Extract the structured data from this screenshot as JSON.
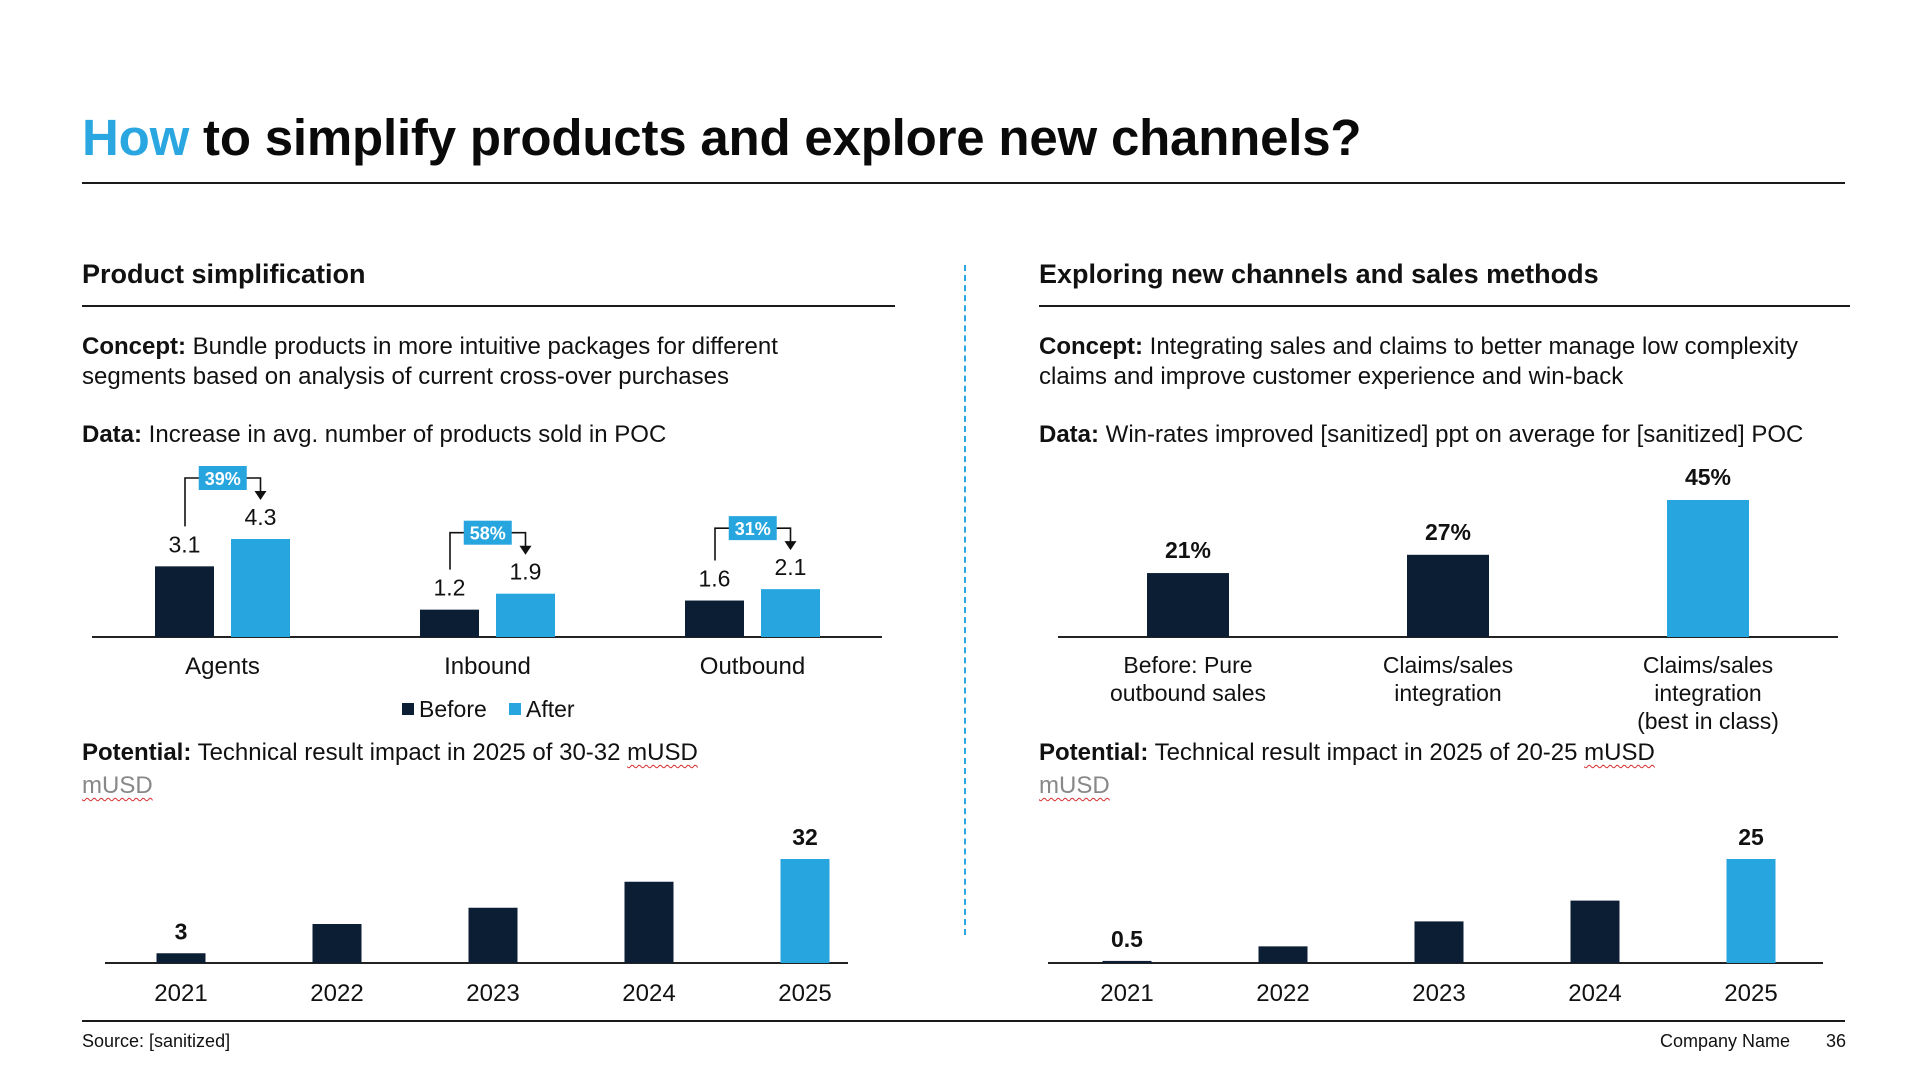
{
  "title": {
    "accent": "How",
    "rest": " to simplify products and explore new channels?"
  },
  "left": {
    "heading": "Product simplification",
    "concept_label": "Concept:",
    "concept_text": " Bundle products in more intuitive packages for different segments based on analysis of current cross-over purchases",
    "data_label": "Data:",
    "data_text": " Increase in avg. number of products sold in POC",
    "potential_label": "Potential:",
    "potential_text": " Technical result impact in 2025 of 30-32 ",
    "potential_unit_inline": "mUSD",
    "unit": "mUSD"
  },
  "right": {
    "heading": "Exploring new channels and sales methods",
    "concept_label": "Concept:",
    "concept_text": " Integrating sales and claims to better manage low complexity claims and improve customer experience and win-back",
    "data_label": "Data:",
    "data_text": " Win-rates improved [sanitized] ppt on average for [sanitized] POC",
    "potential_label": "Potential:",
    "potential_text": " Technical result impact in 2025 of 20-25 ",
    "potential_unit_inline": "mUSD",
    "unit": "mUSD"
  },
  "footer": {
    "source": "Source: [sanitized]",
    "company": "Company Name",
    "page": "36"
  },
  "colors": {
    "dark": "#0b1e33",
    "light": "#27a5df"
  },
  "chart_data": [
    {
      "id": "products-sold",
      "type": "bar",
      "categories": [
        "Agents",
        "Inbound",
        "Outbound"
      ],
      "series": [
        {
          "name": "Before",
          "values": [
            3.1,
            1.2,
            1.6
          ],
          "labels": [
            "3.1",
            "1.2",
            "1.6"
          ]
        },
        {
          "name": "After",
          "values": [
            4.3,
            1.9,
            2.1
          ],
          "labels": [
            "4.3",
            "1.9",
            "2.1"
          ]
        }
      ],
      "annotations": [
        "39%",
        "58%",
        "31%"
      ],
      "legend": "bottom",
      "ylim": [
        0,
        4.3
      ]
    },
    {
      "id": "win-rates",
      "type": "bar",
      "categories": [
        [
          "Before: Pure",
          "outbound sales"
        ],
        [
          "Claims/sales",
          "integration"
        ],
        [
          "Claims/sales",
          "integration",
          "(best in class)"
        ]
      ],
      "values": [
        21,
        27,
        45
      ],
      "labels": [
        "21%",
        "27%",
        "45%"
      ],
      "ylim": [
        0,
        45
      ]
    },
    {
      "id": "left-potential",
      "type": "bar",
      "categories": [
        "2021",
        "2022",
        "2023",
        "2024",
        "2025"
      ],
      "values": [
        3,
        12,
        17,
        25,
        32
      ],
      "labels": [
        "3",
        "",
        "",
        "",
        "32"
      ],
      "highlight_last": true,
      "ylim": [
        0,
        32
      ]
    },
    {
      "id": "right-potential",
      "type": "bar",
      "categories": [
        "2021",
        "2022",
        "2023",
        "2024",
        "2025"
      ],
      "values": [
        0.5,
        4,
        10,
        15,
        25
      ],
      "labels": [
        "0.5",
        "",
        "",
        "",
        "25"
      ],
      "highlight_last": true,
      "ylim": [
        0,
        25
      ]
    }
  ]
}
